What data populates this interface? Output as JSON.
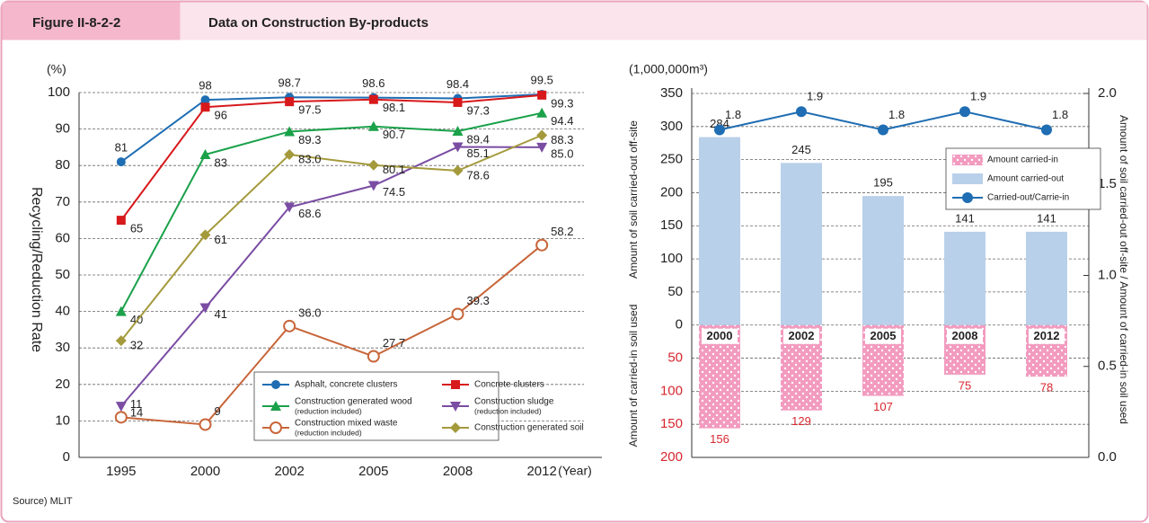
{
  "header": {
    "figure": "Figure II-8-2-2",
    "title": "Data on Construction By-products"
  },
  "source": "Source) MLIT",
  "chart_data": [
    {
      "type": "line",
      "y_unit": "(%)",
      "y_label": "Recycling/Reduction Rate",
      "x_unit": "(Year)",
      "categories": [
        "1995",
        "2000",
        "2002",
        "2005",
        "2008",
        "2012"
      ],
      "ylim": [
        0,
        100
      ],
      "yticks": [
        0,
        10,
        20,
        30,
        40,
        50,
        60,
        70,
        80,
        90,
        100
      ],
      "grid": true,
      "series": [
        {
          "name": "Asphalt, concrete clusters",
          "color": "#1f6db3",
          "marker": "circle",
          "values": [
            81,
            98,
            98.7,
            98.6,
            98.4,
            99.5
          ],
          "value_labels": [
            "81",
            "98",
            "98.7",
            "98.6",
            "98.4",
            "99.5"
          ]
        },
        {
          "name": "Concrete clusters",
          "color": "#d7191c",
          "marker": "square",
          "values": [
            65,
            96,
            97.5,
            98.1,
            97.3,
            99.3
          ],
          "value_labels": [
            "65",
            "96",
            "97.5",
            "98.1",
            "97.3",
            "99.3"
          ]
        },
        {
          "name": "Construction generated wood",
          "name_note": "(reduction included)",
          "color": "#1aa14a",
          "marker": "triangle",
          "values": [
            40,
            83,
            89.3,
            90.7,
            89.4,
            94.4
          ],
          "value_labels": [
            "40",
            "83",
            "89.3",
            "90.7",
            "89.4",
            "94.4"
          ]
        },
        {
          "name": "Construction sludge",
          "name_note": "(reduction included)",
          "color": "#7a4da3",
          "marker": "triangle-down",
          "values": [
            14,
            41,
            68.6,
            74.5,
            85.1,
            85.0
          ],
          "value_labels": [
            "14",
            "41",
            "68.6",
            "74.5",
            "85.1",
            "85.0"
          ]
        },
        {
          "name": "Construction mixed waste",
          "name_note": "(reduction included)",
          "color": "#c8663a",
          "marker": "hollow-circle",
          "values": [
            11,
            9,
            36.0,
            27.7,
            39.3,
            58.2
          ],
          "value_labels": [
            "11",
            "9",
            "36.0",
            "27.7",
            "39.3",
            "58.2"
          ]
        },
        {
          "name": "Construction generated soil",
          "color": "#a49a3c",
          "marker": "diamond",
          "values": [
            32,
            61,
            83.0,
            80.1,
            78.6,
            88.3
          ],
          "value_labels": [
            "32",
            "61",
            "83.0",
            "80.1",
            "78.6",
            "88.3"
          ]
        }
      ]
    },
    {
      "type": "bar",
      "y_unit": "(1,000,000m³)",
      "y_label": "Amount of soil carried-out off-site",
      "y_label_2": "Amount of carried-in soil used",
      "y2_label": "Amount of soil carried-out off-site / Amount of carried-in soil used",
      "categories": [
        "2000",
        "2002",
        "2005",
        "2008",
        "2012"
      ],
      "ylim": [
        -200,
        350
      ],
      "yticks": [
        {
          "value": -200,
          "label": "200"
        },
        {
          "value": -150,
          "label": "150"
        },
        {
          "value": -100,
          "label": "100"
        },
        {
          "value": -50,
          "label": "50"
        },
        0,
        50,
        100,
        150,
        200,
        250,
        300,
        350
      ],
      "y2lim": [
        0,
        2
      ],
      "y2ticks": [
        {
          "value": 0,
          "label": "0.0"
        },
        0.5,
        {
          "value": 1,
          "label": "1.0"
        },
        1.5,
        {
          "value": 2,
          "label": "2.0"
        }
      ],
      "grid": true,
      "series": [
        {
          "name": "Amount carried-in",
          "color": "#f29bbf",
          "values": [
            -156,
            -129,
            -107,
            -75,
            -78
          ],
          "value_labels": [
            "156",
            "129",
            "107",
            "75",
            "78"
          ]
        },
        {
          "name": "Amount carried-out",
          "color": "#b9d0ea",
          "values": [
            284,
            245,
            195,
            141,
            141
          ]
        },
        {
          "name": "Carried-out/Carrie-in",
          "type": "line",
          "axis": "y2",
          "color": "#1f6db3",
          "values": [
            1.8,
            1.9,
            1.8,
            1.9,
            1.8
          ]
        }
      ]
    }
  ]
}
